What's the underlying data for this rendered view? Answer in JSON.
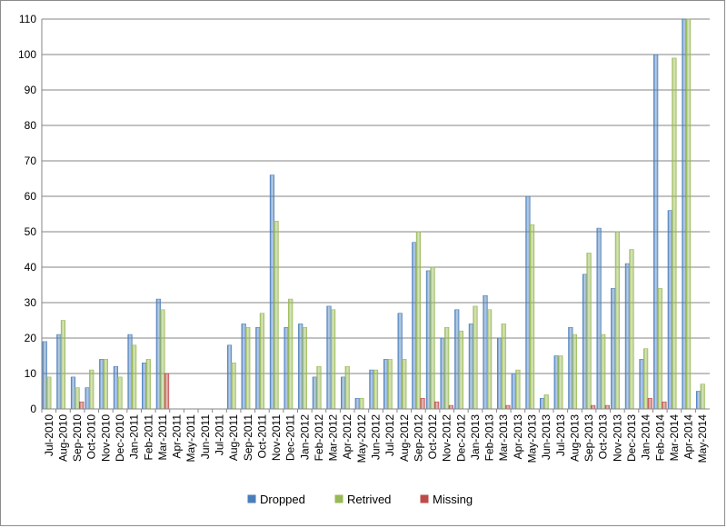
{
  "chart_data": {
    "type": "bar",
    "title": "",
    "xlabel": "",
    "ylabel": "",
    "ylim": [
      0,
      110
    ],
    "yticks": [
      0,
      10,
      20,
      30,
      40,
      50,
      60,
      70,
      80,
      90,
      100,
      110
    ],
    "grid": "horizontal",
    "legend_position": "bottom",
    "categories": [
      "Jul-2010",
      "Aug-2010",
      "Sep-2010",
      "Oct-2010",
      "Nov-2010",
      "Dec-2010",
      "Jan-2011",
      "Feb-2011",
      "Mar-2011",
      "Apr-2011",
      "May-2011",
      "Jun-2011",
      "Jul-2011",
      "Aug-2011",
      "Sep-2011",
      "Oct-2011",
      "Nov-2011",
      "Dec-2011",
      "Jan-2012",
      "Feb-2012",
      "Mar-2012",
      "Apr-2012",
      "May-2012",
      "Jun-2012",
      "Jul-2012",
      "Aug-2012",
      "Sep-2012",
      "Oct-2012",
      "Nov-2012",
      "Dec-2012",
      "Jan-2013",
      "Feb-2013",
      "Mar-2013",
      "Apr-2013",
      "May-2013",
      "Jun-2013",
      "Jul-2013",
      "Aug-2013",
      "Sep-2013",
      "Oct-2013",
      "Nov-2013",
      "Dec-2013",
      "Jan-2014",
      "Feb-2014",
      "Mar-2014",
      "Apr-2014",
      "May-2014"
    ],
    "series": [
      {
        "name": "Dropped",
        "color": "#4a7ebb",
        "values": [
          19,
          21,
          9,
          6,
          14,
          12,
          21,
          13,
          31,
          0,
          0,
          0,
          0,
          18,
          24,
          23,
          66,
          23,
          24,
          9,
          29,
          9,
          3,
          11,
          14,
          27,
          47,
          39,
          20,
          28,
          24,
          32,
          20,
          10,
          60,
          3,
          15,
          23,
          38,
          51,
          34,
          41,
          14,
          100,
          56,
          110,
          5
        ]
      },
      {
        "name": "Retrived",
        "color": "#98b954",
        "values": [
          9,
          25,
          6,
          11,
          14,
          9,
          18,
          14,
          28,
          0,
          0,
          0,
          0,
          13,
          23,
          27,
          53,
          31,
          23,
          12,
          28,
          12,
          3,
          11,
          14,
          14,
          50,
          40,
          23,
          22,
          29,
          28,
          24,
          11,
          52,
          4,
          15,
          21,
          44,
          21,
          50,
          45,
          17,
          34,
          99,
          110,
          7
        ]
      },
      {
        "name": "Missing",
        "color": "#be4b48",
        "values": [
          0,
          0,
          2,
          0,
          0,
          0,
          0,
          0,
          10,
          0,
          0,
          0,
          0,
          0,
          0,
          0,
          0,
          0,
          0,
          0,
          0,
          0,
          0,
          0,
          0,
          0,
          3,
          2,
          1,
          0,
          0,
          0,
          1,
          0,
          0,
          0,
          0,
          0,
          1,
          1,
          0,
          0,
          3,
          2,
          0,
          0,
          0
        ]
      }
    ]
  }
}
